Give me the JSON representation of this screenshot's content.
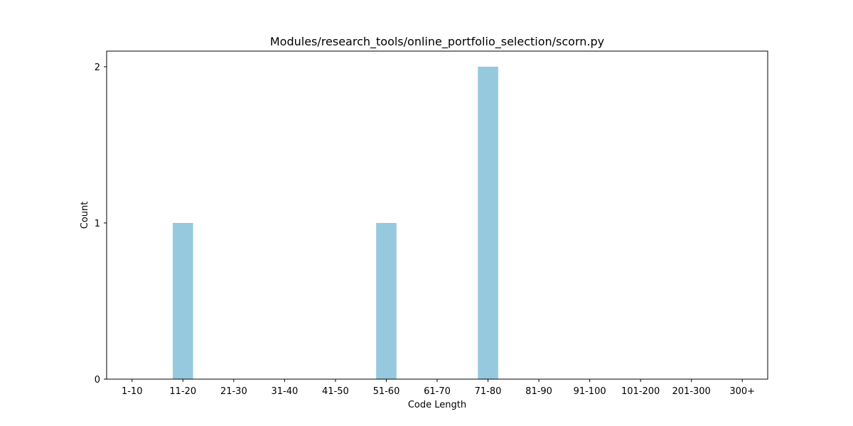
{
  "chart_data": {
    "type": "bar",
    "title": "Modules/research_tools/online_portfolio_selection/scorn.py",
    "xlabel": "Code Length",
    "ylabel": "Count",
    "categories": [
      "1-10",
      "11-20",
      "21-30",
      "31-40",
      "41-50",
      "51-60",
      "61-70",
      "71-80",
      "81-90",
      "91-100",
      "101-200",
      "201-300",
      "300+"
    ],
    "values": [
      0,
      1,
      0,
      0,
      0,
      1,
      0,
      2,
      0,
      0,
      0,
      0,
      0
    ],
    "ylim": [
      0,
      2.1
    ],
    "yticks": [
      0,
      1,
      2
    ],
    "bar_color": "#96c9de",
    "grid": false,
    "legend": "none"
  }
}
